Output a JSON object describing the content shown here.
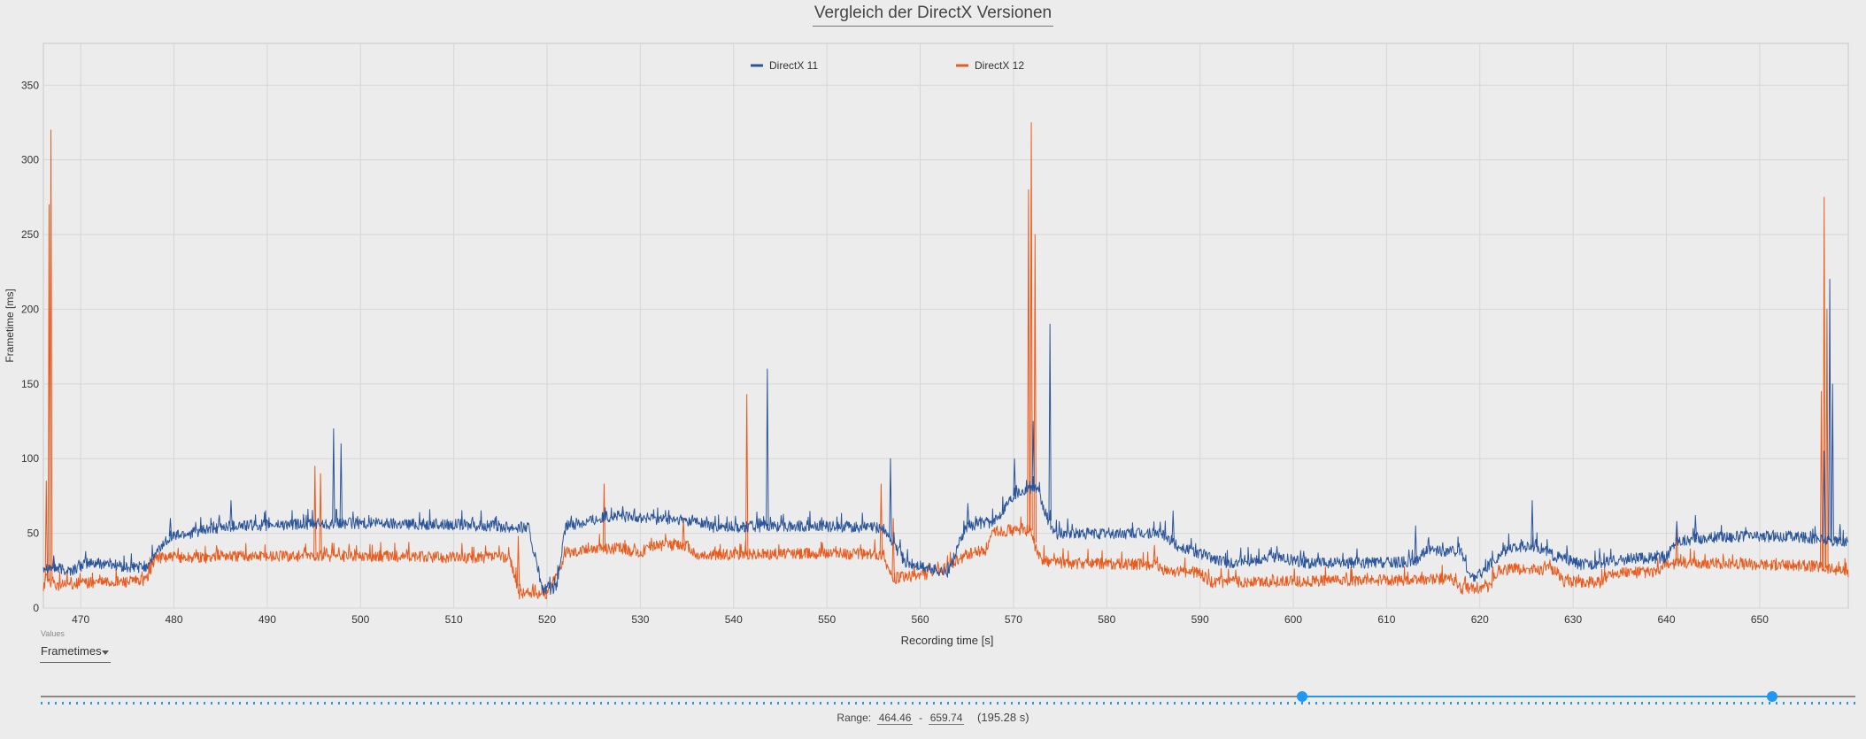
{
  "chart_data": {
    "type": "line",
    "title": "Vergleich der DirectX Versionen",
    "xlabel": "Recording time [s]",
    "ylabel": "Frametime [ms]",
    "xlim": [
      466,
      659.5
    ],
    "ylim": [
      0,
      378
    ],
    "x_ticks": [
      "470",
      "480",
      "490",
      "500",
      "510",
      "520",
      "530",
      "540",
      "550",
      "560",
      "570",
      "580",
      "590",
      "600",
      "610",
      "620",
      "630",
      "640",
      "650"
    ],
    "y_ticks": [
      "0",
      "50",
      "100",
      "150",
      "200",
      "250",
      "300",
      "350"
    ],
    "grid": true,
    "legend_position": "top-center",
    "series": [
      {
        "name": "DirectX 11",
        "color": "#2b559a",
        "baseline": [
          [
            466,
            28
          ],
          [
            469,
            25
          ],
          [
            470.5,
            30
          ],
          [
            473,
            30
          ],
          [
            475,
            27
          ],
          [
            477,
            28
          ],
          [
            479.5,
            48
          ],
          [
            486,
            55
          ],
          [
            492,
            56
          ],
          [
            500,
            57
          ],
          [
            510,
            56
          ],
          [
            518,
            54
          ],
          [
            519.5,
            12
          ],
          [
            521,
            13
          ],
          [
            522,
            55
          ],
          [
            527,
            62
          ],
          [
            536,
            58
          ],
          [
            538,
            54
          ],
          [
            544,
            55
          ],
          [
            550,
            55
          ],
          [
            556,
            54
          ],
          [
            558.5,
            30
          ],
          [
            563,
            24
          ],
          [
            565,
            55
          ],
          [
            568,
            58
          ],
          [
            569.5,
            72
          ],
          [
            570.5,
            78
          ],
          [
            571.8,
            80
          ],
          [
            572.5,
            80
          ],
          [
            573.5,
            62
          ],
          [
            574.5,
            50
          ],
          [
            579,
            50
          ],
          [
            586,
            50
          ],
          [
            587.5,
            42
          ],
          [
            593,
            30
          ],
          [
            598,
            34
          ],
          [
            602,
            30
          ],
          [
            613,
            31
          ],
          [
            614,
            38
          ],
          [
            618,
            38
          ],
          [
            619,
            20
          ],
          [
            620,
            23
          ],
          [
            623,
            40
          ],
          [
            626,
            42
          ],
          [
            628,
            35
          ],
          [
            631,
            29
          ],
          [
            636,
            33
          ],
          [
            640,
            34
          ],
          [
            641,
            45
          ],
          [
            646,
            48
          ],
          [
            652,
            48
          ],
          [
            654,
            48
          ],
          [
            659.5,
            44
          ]
        ],
        "noise": 4,
        "spikes": [
          [
            467,
            35
          ],
          [
            479.5,
            60
          ],
          [
            486,
            72
          ],
          [
            497,
            120
          ],
          [
            497.8,
            110
          ],
          [
            528,
            68
          ],
          [
            541,
            56
          ],
          [
            543.5,
            160
          ],
          [
            556.7,
            100
          ],
          [
            565,
            70
          ],
          [
            570,
            100
          ],
          [
            572,
            125
          ],
          [
            573.8,
            190
          ],
          [
            587,
            65
          ],
          [
            601,
            38
          ],
          [
            613,
            55
          ],
          [
            625.5,
            72
          ],
          [
            641,
            58
          ],
          [
            643,
            62
          ],
          [
            656.8,
            105
          ],
          [
            657.4,
            220
          ],
          [
            657.7,
            150
          ],
          [
            658.5,
            56
          ]
        ]
      },
      {
        "name": "DirectX 12",
        "color": "#e95a1c",
        "baseline": [
          [
            466,
            15
          ],
          [
            466.3,
            20
          ],
          [
            467.5,
            15
          ],
          [
            470,
            17
          ],
          [
            476,
            18
          ],
          [
            477,
            19
          ],
          [
            478,
            34
          ],
          [
            480,
            34
          ],
          [
            484,
            34
          ],
          [
            485,
            36
          ],
          [
            486,
            35
          ],
          [
            500,
            35
          ],
          [
            510,
            34
          ],
          [
            516,
            34
          ],
          [
            517,
            10
          ],
          [
            520,
            10
          ],
          [
            521,
            22
          ],
          [
            522,
            37
          ],
          [
            525,
            40
          ],
          [
            528,
            40
          ],
          [
            530,
            37
          ],
          [
            531,
            42
          ],
          [
            535,
            42
          ],
          [
            536,
            35
          ],
          [
            540,
            36
          ],
          [
            550,
            37
          ],
          [
            556,
            36
          ],
          [
            557,
            20
          ],
          [
            561,
            23
          ],
          [
            563,
            27
          ],
          [
            565,
            36
          ],
          [
            567,
            39
          ],
          [
            568,
            52
          ],
          [
            570,
            52
          ],
          [
            571.8,
            52
          ],
          [
            572.5,
            38
          ],
          [
            573,
            32
          ],
          [
            576,
            30
          ],
          [
            580,
            30
          ],
          [
            585,
            29
          ],
          [
            586,
            25
          ],
          [
            590,
            24
          ],
          [
            591,
            17
          ],
          [
            597,
            18
          ],
          [
            600,
            18
          ],
          [
            613,
            19
          ],
          [
            617,
            20
          ],
          [
            618,
            13
          ],
          [
            621,
            14
          ],
          [
            622,
            26
          ],
          [
            628,
            26
          ],
          [
            629,
            18
          ],
          [
            633,
            17
          ],
          [
            634,
            24
          ],
          [
            639,
            24
          ],
          [
            640,
            30
          ],
          [
            646,
            30
          ],
          [
            652,
            29
          ],
          [
            656,
            28
          ],
          [
            659.5,
            24
          ]
        ],
        "noise": 4,
        "spikes": [
          [
            466.2,
            85
          ],
          [
            466.5,
            270
          ],
          [
            466.7,
            320
          ],
          [
            495,
            95
          ],
          [
            495.6,
            90
          ],
          [
            516.8,
            48
          ],
          [
            526,
            83
          ],
          [
            534.5,
            60
          ],
          [
            541.3,
            143
          ],
          [
            555.7,
            83
          ],
          [
            557,
            60
          ],
          [
            571.5,
            280
          ],
          [
            571.8,
            325
          ],
          [
            572.2,
            250
          ],
          [
            585,
            42
          ],
          [
            641,
            55
          ],
          [
            656.5,
            145
          ],
          [
            656.8,
            275
          ],
          [
            657.1,
            200
          ]
        ]
      }
    ]
  },
  "controls": {
    "values_label": "Values",
    "values_selected": "Frametimes",
    "range_label": "Range:",
    "range_from": "464.46",
    "range_separator": "-",
    "range_to": "659.74",
    "range_duration": "(195.28 s)",
    "slider_start_fraction": 0.695,
    "slider_end_fraction": 0.954
  }
}
